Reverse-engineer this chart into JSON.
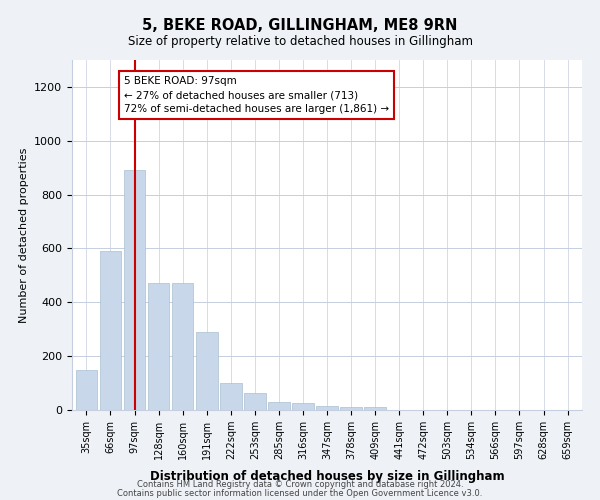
{
  "title1": "5, BEKE ROAD, GILLINGHAM, ME8 9RN",
  "title2": "Size of property relative to detached houses in Gillingham",
  "xlabel": "Distribution of detached houses by size in Gillingham",
  "ylabel": "Number of detached properties",
  "categories": [
    "35sqm",
    "66sqm",
    "97sqm",
    "128sqm",
    "160sqm",
    "191sqm",
    "222sqm",
    "253sqm",
    "285sqm",
    "316sqm",
    "347sqm",
    "378sqm",
    "409sqm",
    "441sqm",
    "472sqm",
    "503sqm",
    "534sqm",
    "566sqm",
    "597sqm",
    "628sqm",
    "659sqm"
  ],
  "values": [
    150,
    590,
    890,
    470,
    470,
    290,
    100,
    65,
    30,
    25,
    15,
    10,
    10,
    0,
    0,
    0,
    0,
    0,
    0,
    0,
    0
  ],
  "bar_color": "#c8d8ea",
  "bar_edge_color": "#aabfd0",
  "highlight_bar_index": 2,
  "highlight_line_color": "#cc0000",
  "ylim": [
    0,
    1300
  ],
  "yticks": [
    0,
    200,
    400,
    600,
    800,
    1000,
    1200
  ],
  "annotation_text": "5 BEKE ROAD: 97sqm\n← 27% of detached houses are smaller (713)\n72% of semi-detached houses are larger (1,861) →",
  "annotation_box_color": "#ffffff",
  "annotation_border_color": "#cc0000",
  "footer1": "Contains HM Land Registry data © Crown copyright and database right 2024.",
  "footer2": "Contains public sector information licensed under the Open Government Licence v3.0.",
  "background_color": "#eef2f7",
  "plot_bg_color": "#ffffff",
  "grid_color": "#c5cfe0"
}
